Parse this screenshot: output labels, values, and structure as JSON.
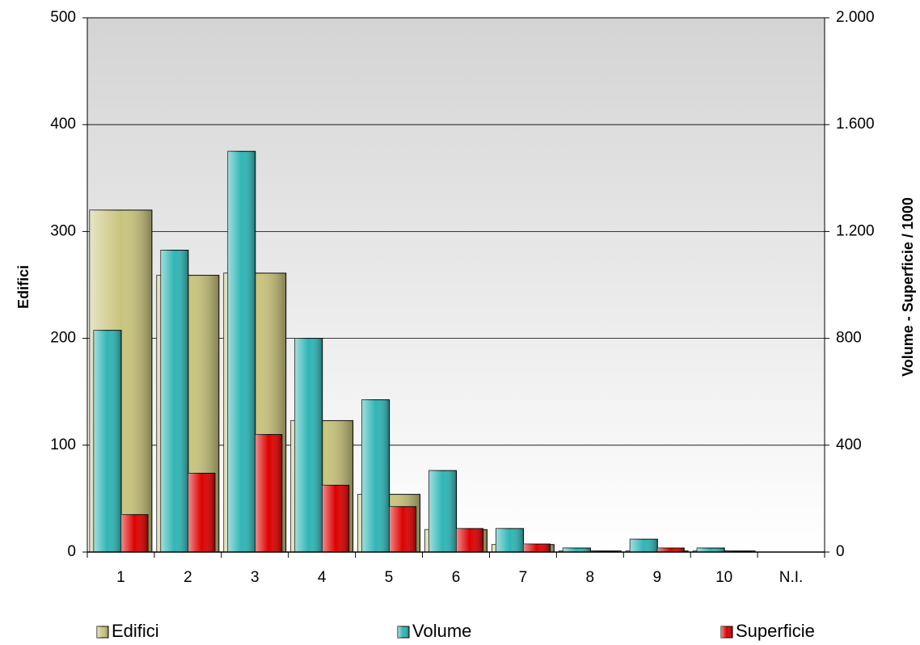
{
  "chart_data": {
    "type": "bar",
    "categories": [
      "1",
      "2",
      "3",
      "4",
      "5",
      "6",
      "7",
      "8",
      "9",
      "10",
      "N.I."
    ],
    "series": [
      {
        "name": "Edifici",
        "color": "#c9c47c",
        "axis": "y",
        "values": [
          320,
          259,
          261,
          123,
          54,
          21,
          7,
          1,
          1,
          1,
          0
        ]
      },
      {
        "name": "Volume",
        "color": "#2fb5b5",
        "axis": "y2",
        "values": [
          830,
          1130,
          1500,
          800,
          570,
          305,
          88,
          15,
          48,
          15,
          0
        ]
      },
      {
        "name": "Superficie",
        "color": "#dd0000",
        "axis": "y2",
        "values": [
          140,
          295,
          440,
          250,
          170,
          88,
          30,
          3,
          15,
          3,
          0
        ]
      }
    ],
    "ylabel": "Edifici",
    "y2label": "Volume - Superficie / 1000",
    "ylim": [
      0,
      500
    ],
    "yticks": [
      0,
      100,
      200,
      300,
      400,
      500
    ],
    "y2lim": [
      0,
      2000
    ],
    "y2ticks": [
      0,
      400,
      800,
      {
        "value": 1200,
        "label": "1.200"
      },
      {
        "value": 1600,
        "label": "1.600"
      },
      {
        "value": 2000,
        "label": "2.000"
      }
    ],
    "grid": true,
    "legend": "bottom"
  }
}
